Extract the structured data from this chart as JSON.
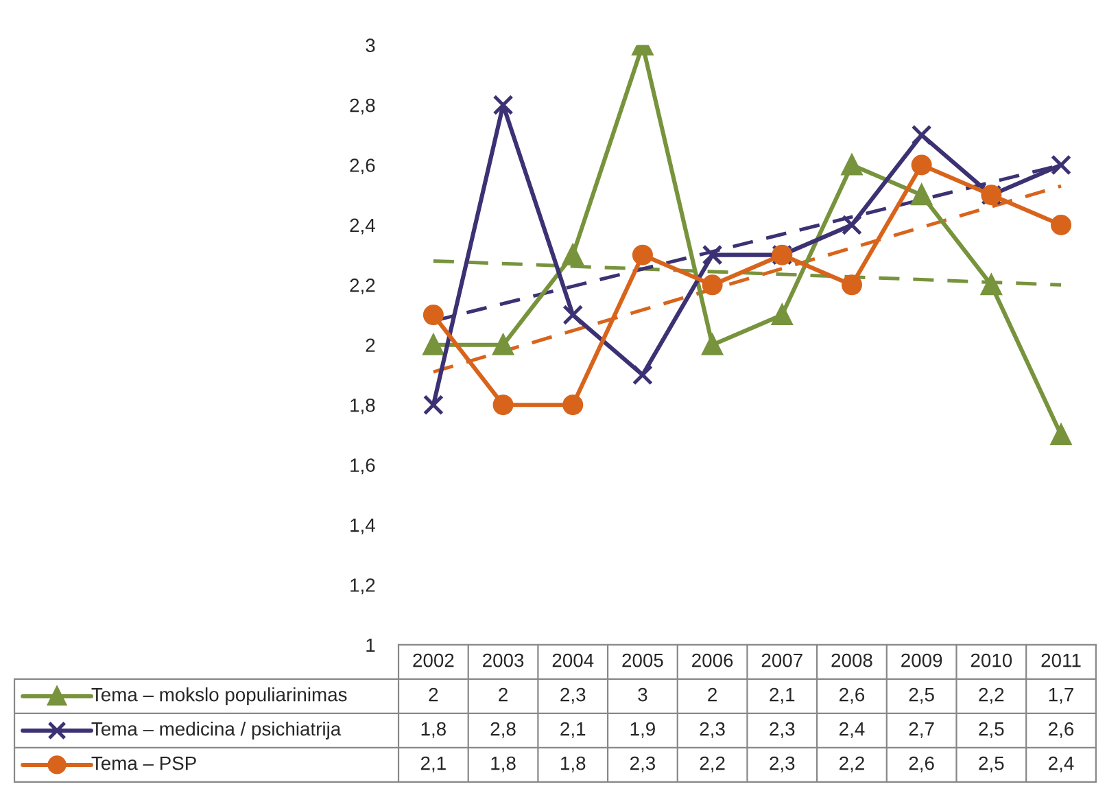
{
  "chart_data": {
    "type": "line",
    "categories": [
      "2002",
      "2003",
      "2004",
      "2005",
      "2006",
      "2007",
      "2008",
      "2009",
      "2010",
      "2011"
    ],
    "ylim": [
      1,
      3
    ],
    "yticks": [
      1,
      {
        "value": 1.2,
        "label": "1,2"
      },
      {
        "value": 1.4,
        "label": "1,4"
      },
      {
        "value": 1.6,
        "label": "1,6"
      },
      {
        "value": 1.8,
        "label": "1,8"
      },
      2,
      {
        "value": 2.2,
        "label": "2,2"
      },
      {
        "value": 2.4,
        "label": "2,4"
      },
      {
        "value": 2.6,
        "label": "2,6"
      },
      {
        "value": 2.8,
        "label": "2,8"
      },
      3
    ],
    "grid": false,
    "legend": "bottom",
    "line_style": "solid",
    "series": [
      {
        "name": "Tema – mokslo populiarinimas",
        "color": "#77933c",
        "marker": "triangle",
        "values": [
          2,
          2,
          2.3,
          3,
          2,
          2.1,
          2.6,
          2.5,
          2.2,
          1.7
        ],
        "value_labels": [
          "2",
          "2",
          "2,3",
          "3",
          "2",
          "2,1",
          "2,6",
          "2,5",
          "2,2",
          "1,7"
        ]
      },
      {
        "name": "Tema – medicina / psichiatrija",
        "color": "#3b3173",
        "marker": "cross",
        "values": [
          1.8,
          2.8,
          2.1,
          1.9,
          2.3,
          2.3,
          2.4,
          2.7,
          2.5,
          2.6
        ],
        "value_labels": [
          "1,8",
          "2,8",
          "2,1",
          "1,9",
          "2,3",
          "2,3",
          "2,4",
          "2,7",
          "2,5",
          "2,6"
        ]
      },
      {
        "name": "Tema – PSP",
        "color": "#d8641c",
        "marker": "circle",
        "values": [
          2.1,
          1.8,
          1.8,
          2.3,
          2.2,
          2.3,
          2.2,
          2.6,
          2.5,
          2.4
        ],
        "value_labels": [
          "2,1",
          "1,8",
          "1,8",
          "2,3",
          "2,2",
          "2,3",
          "2,2",
          "2,6",
          "2,5",
          "2,4"
        ]
      },
      {
        "type": "line",
        "color": "#77933c",
        "marker": "none",
        "line_style": "dashed",
        "values": [
          2.28,
          null,
          null,
          null,
          null,
          null,
          null,
          null,
          null,
          2.2
        ]
      },
      {
        "type": "line",
        "color": "#3b3173",
        "marker": "none",
        "line_style": "dashed",
        "values": [
          2.08,
          null,
          null,
          null,
          null,
          null,
          null,
          null,
          null,
          2.6
        ]
      },
      {
        "type": "line",
        "color": "#d8641c",
        "marker": "none",
        "line_style": "dashed",
        "values": [
          1.91,
          null,
          null,
          null,
          null,
          null,
          null,
          null,
          null,
          2.53
        ]
      }
    ]
  }
}
